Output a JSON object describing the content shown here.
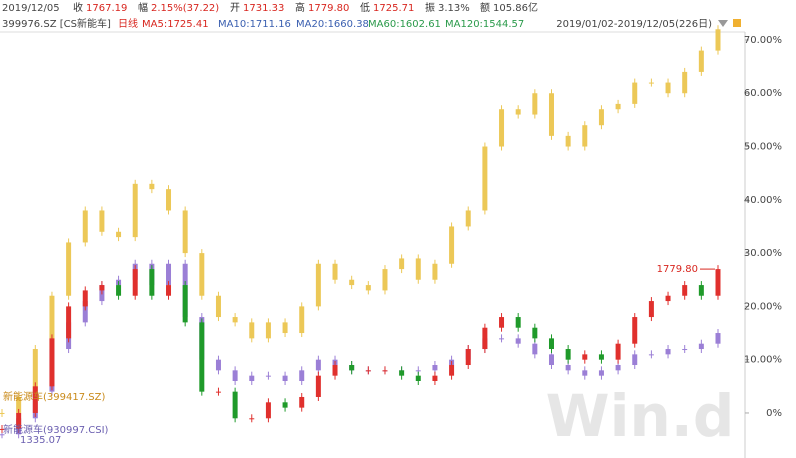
{
  "chart_data": {
    "type": "candle",
    "header": {
      "date": "2019/12/05",
      "close_label": "收",
      "close": "1767.19",
      "chg_label": "幅",
      "chg": "2.15%(37.22)",
      "open_label": "开",
      "open": "1731.33",
      "high_label": "高",
      "high": "1779.80",
      "low_label": "低",
      "low": "1725.71",
      "amp_label": "振",
      "amp": "3.13%",
      "amt_label": "额",
      "amt": "105.86亿"
    },
    "subheader": {
      "code": "399976.SZ [CS新能车]",
      "period": "日线",
      "ma5": "MA5:1725.41",
      "ma10": "MA10:1711.16",
      "ma20": "MA20:1660.38",
      "ma60": "MA60:1602.61",
      "ma120": "MA120:1544.57"
    },
    "range": "2019/01/02-2019/12/05(226日)",
    "annotation": "1779.80",
    "ylim": [
      -8,
      75
    ],
    "yticks": [
      {
        "value": 0,
        "label": "0%"
      },
      {
        "value": 10,
        "label": "10.00%"
      },
      {
        "value": 20,
        "label": "20.00%"
      },
      {
        "value": 30,
        "label": "30.00%"
      },
      {
        "value": 40,
        "label": "40.00%"
      },
      {
        "value": 50,
        "label": "50.00%"
      },
      {
        "value": 60,
        "label": "60.00%"
      },
      {
        "value": 70,
        "label": "70.00%"
      }
    ],
    "series": [
      {
        "name": "新能源车(399417.SZ)",
        "color": "#ecc857",
        "values": [
          0,
          3,
          12,
          22,
          32,
          38,
          34,
          33,
          43,
          42,
          38,
          30,
          22,
          18,
          17,
          14,
          17,
          15,
          20,
          28,
          25,
          24,
          23,
          27,
          29,
          25,
          28,
          35,
          38,
          50,
          57,
          56,
          60,
          52,
          50,
          54,
          57,
          58,
          62,
          62,
          60,
          64,
          68,
          72
        ]
      },
      {
        "name": "新能源车(930997.CSI)",
        "color": "#9b7fd6",
        "values": [
          -4,
          -1,
          4,
          12,
          17,
          21,
          24,
          25,
          28,
          24,
          28,
          18,
          10,
          8,
          6,
          7,
          7,
          6,
          8,
          10,
          9,
          8,
          8,
          8,
          8,
          8,
          9,
          10,
          12,
          14,
          14,
          13,
          11,
          9,
          8,
          7,
          8,
          9,
          11,
          11,
          12,
          12,
          13,
          15
        ]
      },
      {
        "name": "399976.SZ",
        "up_color": "#e0302d",
        "down_color": "#1f9a2a",
        "values": [
          -3,
          0,
          5,
          14,
          20,
          23,
          24,
          22,
          27,
          22,
          24,
          17,
          4,
          4,
          -1,
          -1,
          2,
          1,
          3,
          7,
          9,
          8,
          8,
          8,
          7,
          6,
          7,
          9,
          12,
          16,
          18,
          16,
          14,
          12,
          10,
          11,
          10,
          13,
          18,
          21,
          22,
          24,
          22,
          27
        ]
      }
    ],
    "legend_value": "1335.07",
    "watermark": "Win.d"
  }
}
